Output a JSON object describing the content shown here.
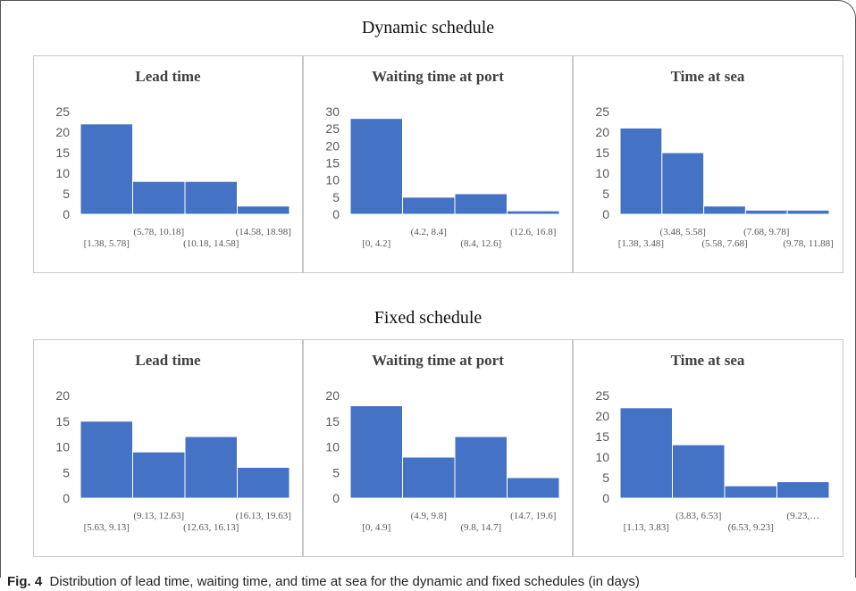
{
  "sections": [
    {
      "title": "Dynamic schedule"
    },
    {
      "title": "Fixed schedule"
    }
  ],
  "caption": {
    "label": "Fig. 4",
    "text": "Distribution of lead time, waiting time, and time at sea for the dynamic and fixed schedules (in days)"
  },
  "colors": {
    "bar": "#4472c4",
    "panel_border": "#c8c8c8",
    "text": "#595959"
  },
  "chart_data": [
    {
      "type": "bar",
      "group": "Dynamic schedule",
      "title": "Lead time",
      "categories": [
        "[1.38, 5.78]",
        "(5.78, 10.18]",
        "(10.18, 14.58]",
        "(14.58, 18.98]"
      ],
      "values": [
        22,
        8,
        8,
        2
      ],
      "ylim": [
        0,
        25
      ],
      "yticks": [
        0,
        5,
        10,
        15,
        20,
        25
      ],
      "grid": false
    },
    {
      "type": "bar",
      "group": "Dynamic schedule",
      "title": "Waiting time at port",
      "categories": [
        "[0, 4.2]",
        "(4.2, 8.4]",
        "(8.4, 12.6]",
        "(12.6, 16.8]"
      ],
      "values": [
        28,
        5,
        6,
        1
      ],
      "ylim": [
        0,
        30
      ],
      "yticks": [
        0,
        5,
        10,
        15,
        20,
        25,
        30
      ],
      "grid": false
    },
    {
      "type": "bar",
      "group": "Dynamic schedule",
      "title": "Time at sea",
      "categories": [
        "[1.38, 3.48]",
        "(3.48, 5.58]",
        "(5.58, 7.68]",
        "(7.68, 9.78]",
        "(9.78, 11.88]"
      ],
      "values": [
        21,
        15,
        2,
        1,
        1
      ],
      "ylim": [
        0,
        25
      ],
      "yticks": [
        0,
        5,
        10,
        15,
        20,
        25
      ],
      "grid": false
    },
    {
      "type": "bar",
      "group": "Fixed schedule",
      "title": "Lead time",
      "categories": [
        "[5.63, 9.13]",
        "(9.13, 12.63]",
        "(12.63, 16.13]",
        "(16.13, 19.63]"
      ],
      "values": [
        15,
        9,
        12,
        6
      ],
      "ylim": [
        0,
        20
      ],
      "yticks": [
        0,
        5,
        10,
        15,
        20
      ],
      "grid": false
    },
    {
      "type": "bar",
      "group": "Fixed schedule",
      "title": "Waiting time at port",
      "categories": [
        "[0, 4.9]",
        "(4.9, 9.8]",
        "(9.8, 14.7]",
        "(14.7, 19.6]"
      ],
      "values": [
        18,
        8,
        12,
        4
      ],
      "ylim": [
        0,
        20
      ],
      "yticks": [
        0,
        5,
        10,
        15,
        20
      ],
      "grid": false
    },
    {
      "type": "bar",
      "group": "Fixed schedule",
      "title": "Time at sea",
      "categories": [
        "[1.13, 3.83]",
        "(3.83, 6.53]",
        "(6.53, 9.23]",
        "(9.23,…"
      ],
      "values": [
        22,
        13,
        3,
        4
      ],
      "ylim": [
        0,
        25
      ],
      "yticks": [
        0,
        5,
        10,
        15,
        20,
        25
      ],
      "grid": false
    }
  ]
}
